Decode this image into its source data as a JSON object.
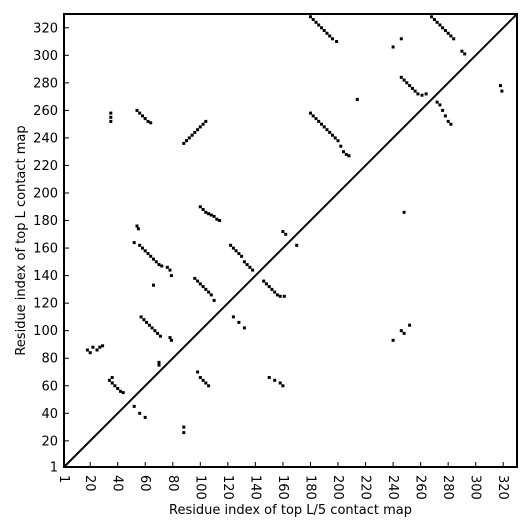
{
  "chart_data": {
    "type": "scatter",
    "title": "",
    "xlabel": "Residue index of top L/5 contact map",
    "ylabel": "Residue index of top L contact map",
    "xlim": [
      1,
      330
    ],
    "ylim": [
      1,
      330
    ],
    "x_ticks": [
      1,
      20,
      40,
      60,
      80,
      100,
      120,
      140,
      160,
      180,
      200,
      220,
      240,
      260,
      280,
      300,
      320
    ],
    "y_ticks": [
      1,
      20,
      40,
      60,
      80,
      100,
      120,
      140,
      160,
      180,
      200,
      220,
      240,
      260,
      280,
      300,
      320
    ],
    "diagonal": true,
    "grid": false,
    "series": [
      {
        "marker_color": "#000000",
        "points": [
          [
            180,
            328
          ],
          [
            182,
            326
          ],
          [
            184,
            324
          ],
          [
            186,
            322
          ],
          [
            188,
            320
          ],
          [
            190,
            318
          ],
          [
            192,
            316
          ],
          [
            194,
            314
          ],
          [
            196,
            312
          ],
          [
            199,
            310
          ],
          [
            268,
            328
          ],
          [
            270,
            326
          ],
          [
            272,
            324
          ],
          [
            274,
            322
          ],
          [
            276,
            320
          ],
          [
            278,
            318
          ],
          [
            280,
            316
          ],
          [
            282,
            314
          ],
          [
            284,
            312
          ],
          [
            240,
            306
          ],
          [
            246,
            312
          ],
          [
            290,
            303
          ],
          [
            292,
            301
          ],
          [
            246,
            284
          ],
          [
            248,
            282
          ],
          [
            250,
            280
          ],
          [
            252,
            278
          ],
          [
            254,
            276
          ],
          [
            256,
            274
          ],
          [
            258,
            272
          ],
          [
            261,
            271
          ],
          [
            264,
            272
          ],
          [
            318,
            278
          ],
          [
            319,
            274
          ],
          [
            35,
            258
          ],
          [
            35,
            255
          ],
          [
            35,
            252
          ],
          [
            54,
            260
          ],
          [
            56,
            258
          ],
          [
            58,
            256
          ],
          [
            60,
            254
          ],
          [
            62,
            252
          ],
          [
            64,
            251
          ],
          [
            88,
            236
          ],
          [
            90,
            238
          ],
          [
            92,
            240
          ],
          [
            94,
            242
          ],
          [
            96,
            244
          ],
          [
            98,
            246
          ],
          [
            100,
            248
          ],
          [
            102,
            250
          ],
          [
            104,
            252
          ],
          [
            180,
            258
          ],
          [
            182,
            256
          ],
          [
            184,
            254
          ],
          [
            186,
            252
          ],
          [
            188,
            250
          ],
          [
            190,
            248
          ],
          [
            192,
            246
          ],
          [
            194,
            244
          ],
          [
            196,
            242
          ],
          [
            198,
            240
          ],
          [
            200,
            238
          ],
          [
            202,
            234
          ],
          [
            204,
            230
          ],
          [
            206,
            228
          ],
          [
            208,
            227
          ],
          [
            214,
            268
          ],
          [
            272,
            266
          ],
          [
            274,
            264
          ],
          [
            276,
            260
          ],
          [
            278,
            256
          ],
          [
            280,
            252
          ],
          [
            282,
            250
          ],
          [
            100,
            190
          ],
          [
            102,
            188
          ],
          [
            104,
            186
          ],
          [
            106,
            185
          ],
          [
            108,
            184
          ],
          [
            110,
            183
          ],
          [
            112,
            181
          ],
          [
            114,
            180
          ],
          [
            54,
            176
          ],
          [
            55,
            174
          ],
          [
            52,
            164
          ],
          [
            56,
            162
          ],
          [
            58,
            160
          ],
          [
            60,
            158
          ],
          [
            62,
            156
          ],
          [
            64,
            154
          ],
          [
            66,
            152
          ],
          [
            68,
            150
          ],
          [
            70,
            148
          ],
          [
            72,
            147
          ],
          [
            76,
            146
          ],
          [
            78,
            144
          ],
          [
            79,
            140
          ],
          [
            160,
            172
          ],
          [
            162,
            170
          ],
          [
            170,
            162
          ],
          [
            122,
            162
          ],
          [
            124,
            160
          ],
          [
            126,
            158
          ],
          [
            128,
            156
          ],
          [
            130,
            154
          ],
          [
            132,
            150
          ],
          [
            134,
            148
          ],
          [
            136,
            146
          ],
          [
            138,
            144
          ],
          [
            96,
            138
          ],
          [
            98,
            136
          ],
          [
            100,
            134
          ],
          [
            102,
            132
          ],
          [
            104,
            130
          ],
          [
            106,
            128
          ],
          [
            108,
            126
          ],
          [
            110,
            122
          ],
          [
            146,
            136
          ],
          [
            148,
            134
          ],
          [
            150,
            132
          ],
          [
            152,
            130
          ],
          [
            154,
            128
          ],
          [
            156,
            126
          ],
          [
            158,
            125
          ],
          [
            161,
            125
          ],
          [
            57,
            110
          ],
          [
            59,
            108
          ],
          [
            61,
            106
          ],
          [
            63,
            104
          ],
          [
            65,
            102
          ],
          [
            67,
            100
          ],
          [
            69,
            98
          ],
          [
            71,
            96
          ],
          [
            78,
            95
          ],
          [
            79,
            93
          ],
          [
            124,
            110
          ],
          [
            128,
            106
          ],
          [
            132,
            102
          ],
          [
            66,
            133
          ],
          [
            248,
            186
          ],
          [
            240,
            93
          ],
          [
            246,
            100
          ],
          [
            248,
            98
          ],
          [
            252,
            104
          ],
          [
            18,
            86
          ],
          [
            20,
            84
          ],
          [
            22,
            88
          ],
          [
            25,
            86
          ],
          [
            27,
            88
          ],
          [
            29,
            89
          ],
          [
            70,
            77
          ],
          [
            70,
            75
          ],
          [
            34,
            64
          ],
          [
            36,
            62
          ],
          [
            38,
            60
          ],
          [
            40,
            58
          ],
          [
            42,
            56
          ],
          [
            44,
            55
          ],
          [
            36,
            66
          ],
          [
            98,
            70
          ],
          [
            100,
            66
          ],
          [
            102,
            64
          ],
          [
            104,
            62
          ],
          [
            106,
            60
          ],
          [
            150,
            66
          ],
          [
            154,
            64
          ],
          [
            158,
            62
          ],
          [
            160,
            60
          ],
          [
            52,
            45
          ],
          [
            56,
            40
          ],
          [
            60,
            37
          ],
          [
            88,
            30
          ],
          [
            88,
            26
          ]
        ]
      }
    ]
  }
}
